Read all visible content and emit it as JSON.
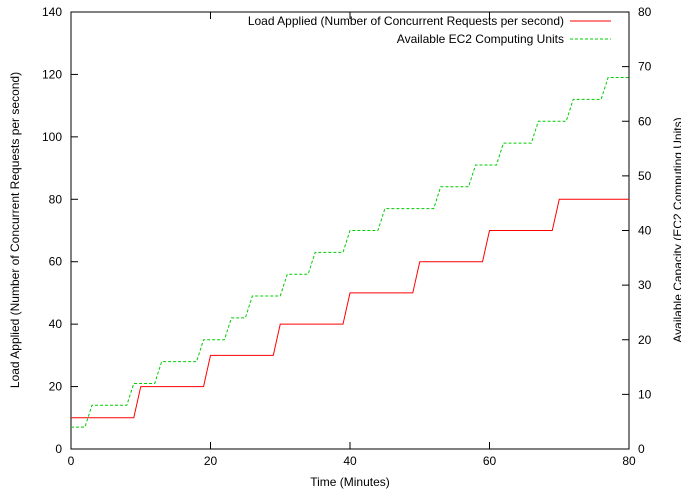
{
  "chart_data": {
    "type": "line",
    "xlabel": "Time (Minutes)",
    "ylabel_left": "Load Applied (Number of Concurrent Requests per second)",
    "ylabel_right": "Available Capacity (EC2 Computing Units)",
    "xlim": [
      0,
      80
    ],
    "ylim_left": [
      0,
      140
    ],
    "ylim_right": [
      0,
      80
    ],
    "x_ticks": [
      "0",
      "20",
      "40",
      "60",
      "80"
    ],
    "y_left_ticks": [
      "0",
      "20",
      "40",
      "60",
      "80",
      "100",
      "120",
      "140"
    ],
    "y_right_ticks": [
      "0",
      "10",
      "20",
      "30",
      "40",
      "50",
      "60",
      "70",
      "80"
    ],
    "grid": false,
    "legend_position": "top-right",
    "series": [
      {
        "name": "Load Applied (Number of Concurrent Requests per second)",
        "axis": "left",
        "color": "#ff0000",
        "style": "solid",
        "points": [
          [
            0,
            10
          ],
          [
            9,
            10
          ],
          [
            10,
            20
          ],
          [
            19,
            20
          ],
          [
            20,
            30
          ],
          [
            29,
            30
          ],
          [
            30,
            40
          ],
          [
            39,
            40
          ],
          [
            40,
            50
          ],
          [
            49,
            50
          ],
          [
            50,
            60
          ],
          [
            59,
            60
          ],
          [
            60,
            70
          ],
          [
            69,
            70
          ],
          [
            70,
            80
          ],
          [
            80,
            80
          ]
        ]
      },
      {
        "name": "Available EC2 Computing Units",
        "axis": "right",
        "color": "#00cc00",
        "style": "dashed",
        "points": [
          [
            0,
            4
          ],
          [
            2,
            4
          ],
          [
            3,
            8
          ],
          [
            8,
            8
          ],
          [
            9,
            12
          ],
          [
            12,
            12
          ],
          [
            13,
            16
          ],
          [
            18,
            16
          ],
          [
            19,
            20
          ],
          [
            22,
            20
          ],
          [
            23,
            24
          ],
          [
            25,
            24
          ],
          [
            26,
            28
          ],
          [
            30,
            28
          ],
          [
            31,
            32
          ],
          [
            34,
            32
          ],
          [
            35,
            36
          ],
          [
            39,
            36
          ],
          [
            40,
            40
          ],
          [
            44,
            40
          ],
          [
            45,
            44
          ],
          [
            52,
            44
          ],
          [
            53,
            48
          ],
          [
            57,
            48
          ],
          [
            58,
            52
          ],
          [
            61,
            52
          ],
          [
            62,
            56
          ],
          [
            66,
            56
          ],
          [
            67,
            60
          ],
          [
            71,
            60
          ],
          [
            72,
            64
          ],
          [
            76,
            64
          ],
          [
            77,
            68
          ],
          [
            80,
            68
          ]
        ]
      }
    ]
  }
}
